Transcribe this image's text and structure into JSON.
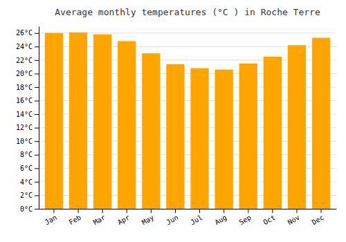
{
  "chart_data": {
    "type": "bar",
    "title": "Average monthly temperatures (°C ) in Roche Terre",
    "categories": [
      "Jan",
      "Feb",
      "Mar",
      "Apr",
      "May",
      "Jun",
      "Jul",
      "Aug",
      "Sep",
      "Oct",
      "Nov",
      "Dec"
    ],
    "values": [
      26.0,
      26.1,
      25.8,
      24.8,
      23.0,
      21.4,
      20.8,
      20.6,
      21.5,
      22.5,
      24.2,
      25.3
    ],
    "color": "#FFA500",
    "ylim": [
      0,
      27
    ],
    "yticks": [
      {
        "value": 0,
        "label": "0°C"
      },
      {
        "value": 2,
        "label": "2°C"
      },
      {
        "value": 4,
        "label": "4°C"
      },
      {
        "value": 6,
        "label": "6°C"
      },
      {
        "value": 8,
        "label": "8°C"
      },
      {
        "value": 10,
        "label": "10°C"
      },
      {
        "value": 12,
        "label": "12°C"
      },
      {
        "value": 14,
        "label": "14°C"
      },
      {
        "value": 16,
        "label": "16°C"
      },
      {
        "value": 18,
        "label": "18°C"
      },
      {
        "value": 20,
        "label": "20°C"
      },
      {
        "value": 22,
        "label": "22°C"
      },
      {
        "value": 24,
        "label": "24°C"
      },
      {
        "value": 26,
        "label": "26°C"
      }
    ],
    "grid": true
  }
}
